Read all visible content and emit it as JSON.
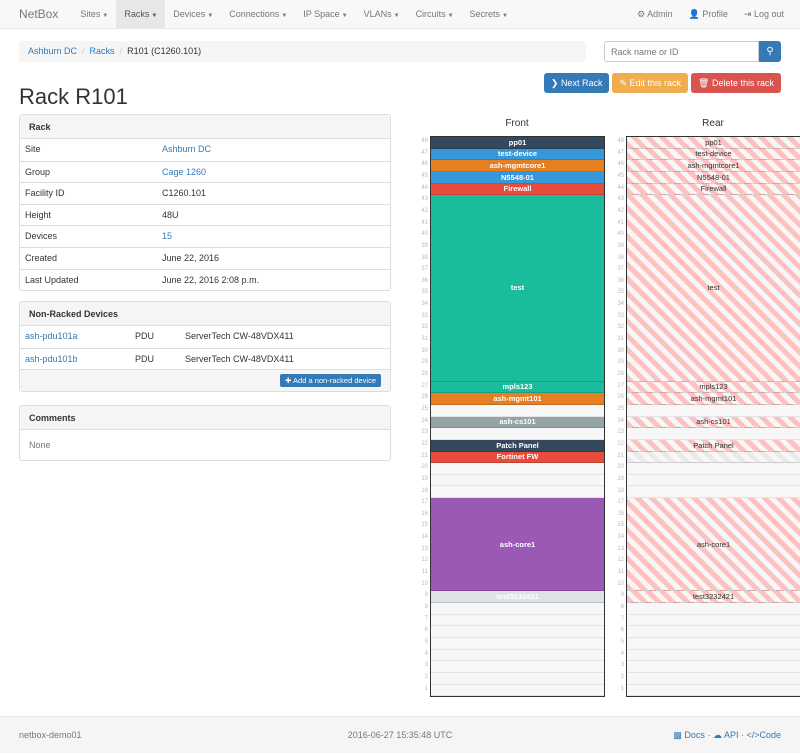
{
  "nav": {
    "brand": "NetBox",
    "items": [
      {
        "label": "Sites"
      },
      {
        "label": "Racks",
        "active": true
      },
      {
        "label": "Devices"
      },
      {
        "label": "Connections"
      },
      {
        "label": "IP Space"
      },
      {
        "label": "VLANs"
      },
      {
        "label": "Circuits"
      },
      {
        "label": "Secrets"
      }
    ],
    "right": [
      {
        "icon": "gear-icon",
        "label": "Admin"
      },
      {
        "icon": "user-icon",
        "label": "Profile"
      },
      {
        "icon": "logout-icon",
        "label": "Log out"
      }
    ]
  },
  "breadcrumb": [
    "Ashburn DC",
    "Racks",
    "R101 (C1260.101)"
  ],
  "search": {
    "placeholder": "Rack name or ID",
    "value": ""
  },
  "buttons": {
    "next": "Next Rack",
    "edit": "Edit this rack",
    "delete": "Delete this rack"
  },
  "colors": {
    "primary": "#337ab7",
    "warning": "#f0ad4e",
    "danger": "#d9534f"
  },
  "title": "Rack R101",
  "rack_panel": {
    "heading": "Rack",
    "rows": [
      {
        "k": "Site",
        "v": "Ashburn DC",
        "link": true
      },
      {
        "k": "Group",
        "v": "Cage 1260",
        "link": true
      },
      {
        "k": "Facility ID",
        "v": "C1260.101"
      },
      {
        "k": "Height",
        "v": "48U"
      },
      {
        "k": "Devices",
        "v": "15",
        "link": true
      },
      {
        "k": "Created",
        "v": "June 22, 2016"
      },
      {
        "k": "Last Updated",
        "v": "June 22, 2016 2:08 p.m."
      }
    ]
  },
  "nonracked": {
    "heading": "Non-Racked Devices",
    "rows": [
      {
        "name": "ash-pdu101a",
        "role": "PDU",
        "type": "ServerTech CW-48VDX411"
      },
      {
        "name": "ash-pdu101b",
        "role": "PDU",
        "type": "ServerTech CW-48VDX411"
      }
    ],
    "add_label": "Add a non-racked device"
  },
  "comments": {
    "heading": "Comments",
    "text": "None"
  },
  "rack": {
    "units": 48,
    "front": {
      "label": "Front",
      "devices": [
        {
          "name": "pp01",
          "pos": 48,
          "h": 1,
          "color": "#34495e"
        },
        {
          "name": "test-device",
          "pos": 47,
          "h": 1,
          "color": "#3498db"
        },
        {
          "name": "ash-mgmtcore1",
          "pos": 46,
          "h": 1,
          "color": "#e67e22"
        },
        {
          "name": "N5548-01",
          "pos": 45,
          "h": 1,
          "color": "#3498db"
        },
        {
          "name": "Firewall",
          "pos": 44,
          "h": 1,
          "color": "#e74c3c"
        },
        {
          "name": "test",
          "pos": 28,
          "h": 16,
          "color": "#1abc9c"
        },
        {
          "name": "mpls123",
          "pos": 27,
          "h": 1,
          "color": "#1abc9c"
        },
        {
          "name": "ash-mgmt101",
          "pos": 26,
          "h": 1,
          "color": "#e67e22"
        },
        {
          "name": "ash-cs101",
          "pos": 24,
          "h": 1,
          "color": "#95a5a6"
        },
        {
          "name": "Patch Panel",
          "pos": 22,
          "h": 1,
          "color": "#34495e"
        },
        {
          "name": "Fortinet FW",
          "pos": 21,
          "h": 1,
          "color": "#e74c3c"
        },
        {
          "name": "ash-core1",
          "pos": 10,
          "h": 8,
          "color": "#9b59b6"
        },
        {
          "name": "test3232421",
          "pos": 9,
          "h": 1,
          "color": "#dde2e5"
        }
      ]
    },
    "rear": {
      "label": "Rear",
      "devices": [
        {
          "name": "pp01",
          "pos": 48,
          "h": 1
        },
        {
          "name": "test-device",
          "pos": 47,
          "h": 1
        },
        {
          "name": "ash-mgmtcore1",
          "pos": 46,
          "h": 1
        },
        {
          "name": "N5548-01",
          "pos": 45,
          "h": 1
        },
        {
          "name": "Firewall",
          "pos": 44,
          "h": 1
        },
        {
          "name": "test",
          "pos": 28,
          "h": 16
        },
        {
          "name": "mpls123",
          "pos": 27,
          "h": 1
        },
        {
          "name": "ash-mgmt101",
          "pos": 26,
          "h": 1
        },
        {
          "name": "ash-cs101",
          "pos": 24,
          "h": 1
        },
        {
          "name": "Patch Panel",
          "pos": 22,
          "h": 1
        },
        {
          "name": "",
          "pos": 21,
          "h": 1,
          "half": true
        },
        {
          "name": "ash-core1",
          "pos": 10,
          "h": 8
        },
        {
          "name": "test3232421",
          "pos": 9,
          "h": 1
        }
      ]
    }
  },
  "footer": {
    "host": "netbox-demo01",
    "time": "2016-06-27 15:35:48 UTC",
    "links": [
      "Docs",
      "API",
      "Code"
    ]
  }
}
